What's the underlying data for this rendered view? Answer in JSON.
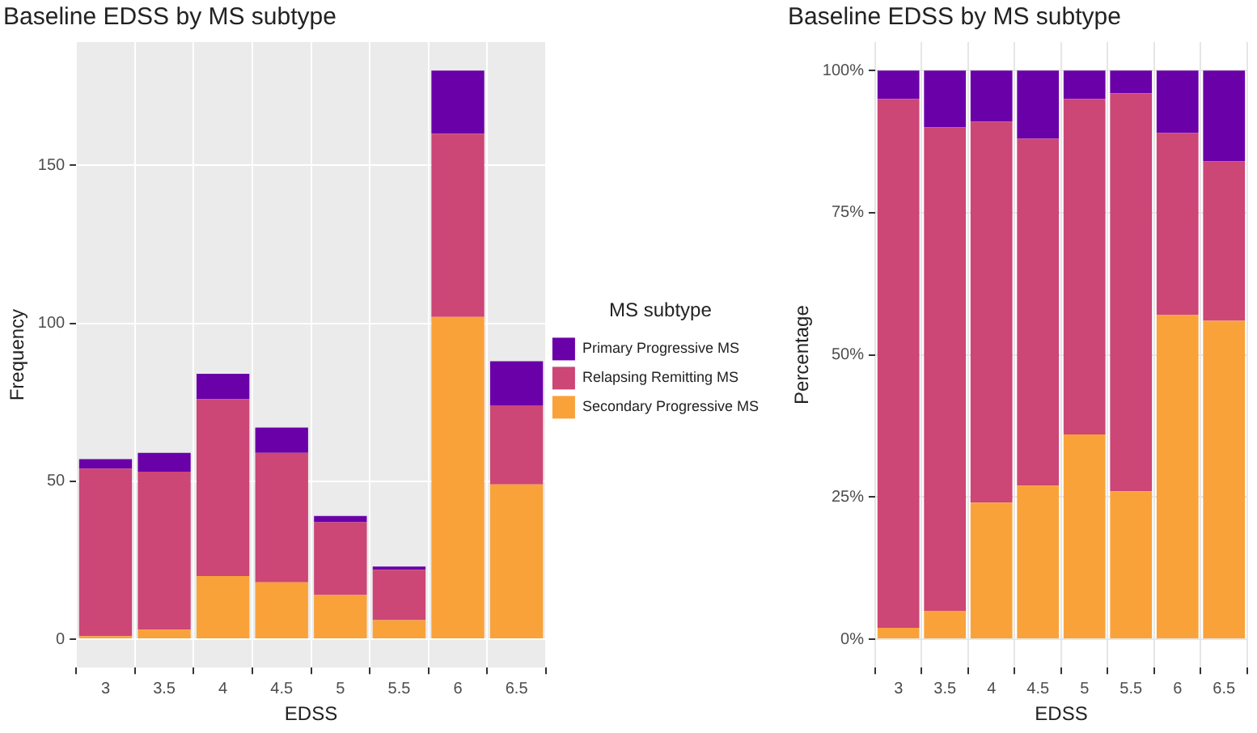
{
  "chart_data": [
    {
      "type": "bar",
      "title": "Baseline EDSS by MS subtype",
      "xlabel": "EDSS",
      "ylabel": "Frequency",
      "legend_title": "MS subtype",
      "stacked": true,
      "categories": [
        "3",
        "3.5",
        "4",
        "4.5",
        "5",
        "5.5",
        "6",
        "6.5"
      ],
      "series": [
        {
          "name": "Secondary Progressive MS",
          "color": "#f9a23a",
          "values": [
            1,
            3,
            20,
            18,
            14,
            6,
            102,
            49
          ]
        },
        {
          "name": "Relapsing Remitting MS",
          "color": "#cc4676",
          "values": [
            53,
            50,
            56,
            41,
            23,
            16,
            58,
            25
          ]
        },
        {
          "name": "Primary Progressive MS",
          "color": "#6a00a8",
          "values": [
            3,
            6,
            8,
            8,
            2,
            1,
            20,
            14
          ]
        }
      ],
      "ylim": [
        -9,
        189
      ],
      "yticks": [
        0,
        50,
        100,
        150
      ],
      "grid": true,
      "legend": "right"
    },
    {
      "type": "bar",
      "title": "Baseline EDSS by MS subtype",
      "xlabel": "EDSS",
      "ylabel": "Percentage",
      "stacked": true,
      "categories": [
        "3",
        "3.5",
        "4",
        "4.5",
        "5",
        "5.5",
        "6",
        "6.5"
      ],
      "series": [
        {
          "color": "#f9a23a",
          "values": [
            2,
            5,
            24,
            27,
            36,
            26,
            57,
            56
          ]
        },
        {
          "color": "#cc4676",
          "values": [
            93,
            85,
            67,
            61,
            59,
            70,
            32,
            28
          ]
        },
        {
          "color": "#6a00a8",
          "values": [
            5,
            10,
            9,
            12,
            5,
            4,
            11,
            16
          ]
        }
      ],
      "ylim": [
        -5,
        105
      ],
      "yticks": [
        {
          "value": 0,
          "label": "0%"
        },
        {
          "value": 25,
          "label": "25%"
        },
        {
          "value": 50,
          "label": "50%"
        },
        {
          "value": 75,
          "label": "75%"
        },
        {
          "value": 100,
          "label": "100%"
        }
      ],
      "grid": true
    }
  ]
}
